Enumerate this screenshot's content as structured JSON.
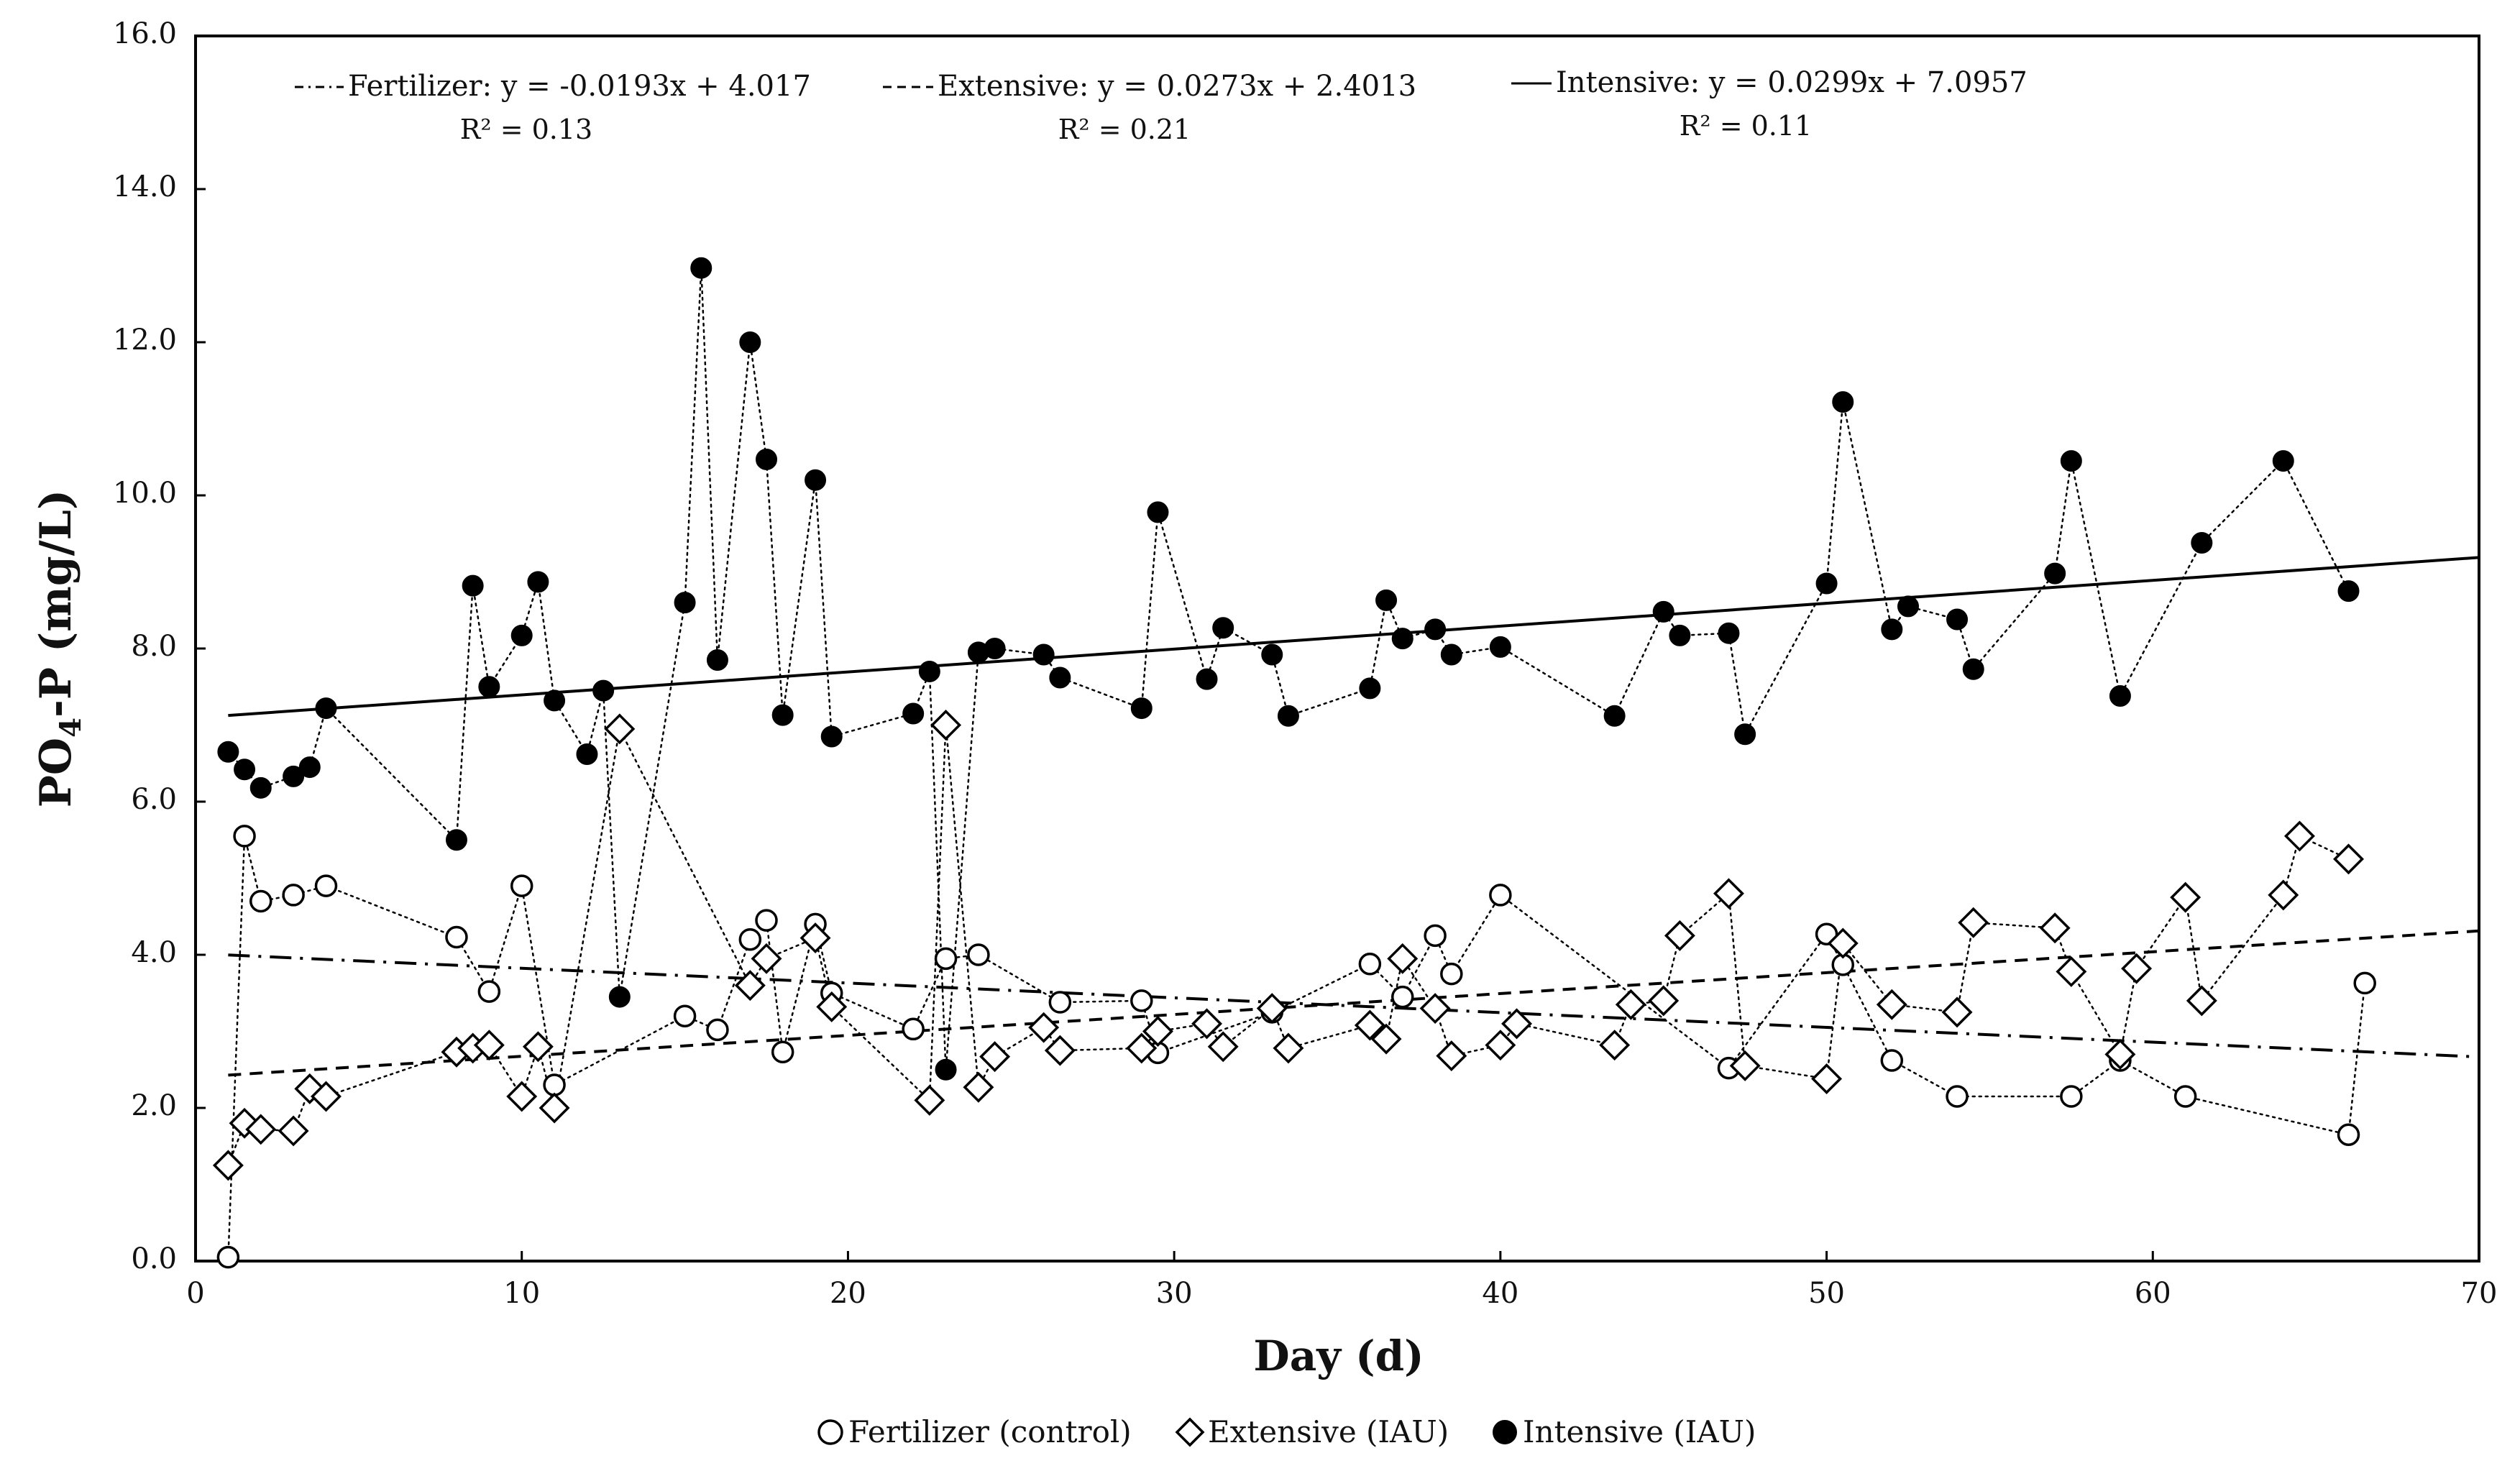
{
  "chart_data": {
    "type": "scatter",
    "xlabel": "Day (d)",
    "ylabel_main": "PO",
    "ylabel_sub": "4",
    "ylabel_rest": "-P (mg/L)",
    "xlim": [
      0,
      70
    ],
    "ylim": [
      0,
      16
    ],
    "x_ticks": [
      0,
      10,
      20,
      30,
      40,
      50,
      60,
      70
    ],
    "y_ticks": [
      "0.0",
      "2.0",
      "4.0",
      "6.0",
      "8.0",
      "10.0",
      "12.0",
      "14.0",
      "16.0"
    ],
    "grid": false,
    "legend_position": "bottom",
    "series": [
      {
        "name": "Fertilizer (control)",
        "marker": "circle-open",
        "x": [
          1,
          1.5,
          2,
          3,
          4,
          8,
          9,
          10,
          11,
          15,
          16,
          17,
          17.5,
          18,
          19,
          19.5,
          22,
          23,
          24,
          26.5,
          29,
          29.5,
          33,
          36,
          37,
          38,
          38.5,
          40,
          47,
          50,
          50.5,
          52,
          54,
          57.5,
          59,
          61,
          66,
          66.5
        ],
        "y": [
          0.05,
          5.55,
          4.7,
          4.78,
          4.9,
          4.23,
          3.52,
          4.9,
          2.3,
          3.2,
          3.02,
          4.2,
          4.45,
          2.73,
          4.4,
          3.5,
          3.03,
          3.95,
          4.0,
          3.38,
          3.4,
          2.72,
          3.25,
          3.88,
          3.45,
          4.25,
          3.75,
          4.78,
          2.52,
          4.27,
          3.87,
          2.62,
          2.15,
          2.15,
          2.62,
          2.15,
          1.65,
          3.63
        ]
      },
      {
        "name": "Extensive (IAU)",
        "marker": "diamond-open",
        "x": [
          1,
          1.5,
          2,
          3,
          3.5,
          4,
          8,
          8.5,
          9,
          10,
          10.5,
          11,
          13,
          17,
          17.5,
          19,
          19.5,
          22.5,
          23,
          24,
          24.5,
          26,
          26.5,
          29,
          29.5,
          31,
          31.5,
          33,
          33.5,
          36,
          36.5,
          37,
          38,
          38.5,
          40,
          40.5,
          43.5,
          44,
          45,
          45.5,
          47,
          47.5,
          50,
          50.5,
          52,
          54,
          54.5,
          57,
          57.5,
          59,
          59.5,
          61,
          61.5,
          64,
          64.5,
          66
        ],
        "y": [
          1.25,
          1.8,
          1.72,
          1.7,
          2.25,
          2.15,
          2.73,
          2.78,
          2.82,
          2.15,
          2.8,
          2.0,
          6.95,
          3.6,
          3.95,
          4.22,
          3.32,
          2.1,
          7.0,
          2.27,
          2.67,
          3.05,
          2.75,
          2.78,
          3.0,
          3.1,
          2.8,
          3.3,
          2.78,
          3.08,
          2.9,
          3.95,
          3.3,
          2.68,
          2.82,
          3.1,
          2.82,
          3.35,
          3.4,
          4.25,
          4.8,
          2.55,
          2.38,
          4.15,
          3.35,
          3.25,
          4.42,
          4.35,
          3.78,
          2.7,
          3.82,
          4.75,
          3.4,
          4.78,
          5.55,
          5.25
        ]
      },
      {
        "name": "Intensive (IAU)",
        "marker": "circle-filled",
        "x": [
          1,
          1.5,
          2,
          3,
          3.5,
          4,
          8,
          8.5,
          9,
          10,
          10.5,
          11,
          12,
          12.5,
          13,
          15,
          15.5,
          16,
          17,
          17.5,
          18,
          19,
          19.5,
          22,
          22.5,
          23,
          24,
          24.5,
          26,
          26.5,
          29,
          29.5,
          31,
          31.5,
          33,
          33.5,
          36,
          36.5,
          37,
          38,
          38.5,
          40,
          43.5,
          45,
          45.5,
          47,
          47.5,
          50,
          50.5,
          52,
          52.5,
          54,
          54.5,
          57,
          57.5,
          59,
          61.5,
          64,
          66
        ],
        "y": [
          6.65,
          6.42,
          6.18,
          6.33,
          6.45,
          7.22,
          5.5,
          8.82,
          7.5,
          8.17,
          8.87,
          7.32,
          6.62,
          7.45,
          3.45,
          8.6,
          12.97,
          7.85,
          12.0,
          10.47,
          7.13,
          10.2,
          6.85,
          7.15,
          7.7,
          2.5,
          7.95,
          8.0,
          7.92,
          7.62,
          7.22,
          9.78,
          7.6,
          8.27,
          7.92,
          7.12,
          7.48,
          8.63,
          8.13,
          8.25,
          7.92,
          8.02,
          7.12,
          8.48,
          8.17,
          8.2,
          6.88,
          8.85,
          11.22,
          8.25,
          8.55,
          8.38,
          7.73,
          8.98,
          10.45,
          7.38,
          9.38,
          10.45,
          8.75
        ]
      }
    ],
    "trendlines": [
      {
        "name": "Fertilizer",
        "style": "dash-dot",
        "slope": -0.0193,
        "intercept": 4.017,
        "x_range": [
          1,
          70
        ],
        "equation": "Fertilizer: y = -0.0193x + 4.017",
        "r2": "R² = 0.13"
      },
      {
        "name": "Extensive",
        "style": "dashed",
        "slope": 0.0273,
        "intercept": 2.4013,
        "x_range": [
          1,
          70
        ],
        "equation": "Extensive: y = 0.0273x + 2.4013",
        "r2": "R² = 0.21"
      },
      {
        "name": "Intensive",
        "style": "solid",
        "slope": 0.0299,
        "intercept": 7.0957,
        "x_range": [
          1,
          70
        ],
        "equation": "Intensive: y = 0.0299x + 7.0957",
        "r2": "R² = 0.11"
      }
    ],
    "legend": {
      "items": [
        "Fertilizer (control)",
        "Extensive (IAU)",
        "Intensive (IAU)"
      ]
    }
  }
}
